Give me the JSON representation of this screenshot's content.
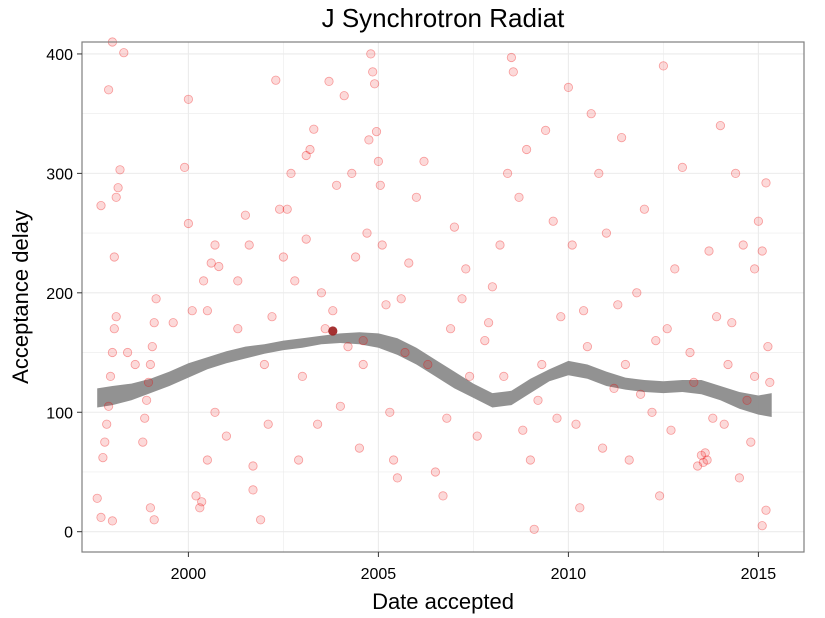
{
  "chart_data": {
    "type": "scatter",
    "title": "J Synchrotron Radiat",
    "xlabel": "Date accepted",
    "ylabel": "Acceptance delay",
    "xlim": [
      1997.2,
      2016.2
    ],
    "ylim": [
      -17,
      410
    ],
    "x_ticks": [
      2000,
      2005,
      2010,
      2015
    ],
    "x_tick_labels": [
      "2000",
      "2005",
      "2010",
      "2015"
    ],
    "y_ticks": [
      0,
      100,
      200,
      300,
      400
    ],
    "y_tick_labels": [
      "0",
      "100",
      "200",
      "300",
      "400"
    ],
    "grid": true,
    "legend": "none",
    "colors": {
      "points": "#ee0000",
      "smooth_band": "#8c8c8c",
      "panel_border": "#7f7f7f",
      "grid": "#ebebeb"
    },
    "series": [
      {
        "kind": "points",
        "points": [
          [
            1997.7,
            273
          ],
          [
            1997.9,
            370
          ],
          [
            1998.0,
            410
          ],
          [
            1998.3,
            401
          ],
          [
            1998.2,
            303
          ],
          [
            1998.15,
            288
          ],
          [
            1998.1,
            280
          ],
          [
            1998.05,
            230
          ],
          [
            1997.75,
            62
          ],
          [
            1997.8,
            75
          ],
          [
            1997.85,
            90
          ],
          [
            1997.9,
            105
          ],
          [
            1997.95,
            130
          ],
          [
            1998.0,
            150
          ],
          [
            1998.05,
            170
          ],
          [
            1998.1,
            180
          ],
          [
            1998.8,
            75
          ],
          [
            1998.85,
            95
          ],
          [
            1998.9,
            110
          ],
          [
            1998.95,
            125
          ],
          [
            1999.0,
            140
          ],
          [
            1999.05,
            155
          ],
          [
            1999.1,
            175
          ],
          [
            1999.15,
            195
          ],
          [
            1997.6,
            28
          ],
          [
            1997.7,
            12
          ],
          [
            1998.0,
            9
          ],
          [
            1998.4,
            150
          ],
          [
            1998.6,
            140
          ],
          [
            1999.0,
            20
          ],
          [
            1999.1,
            10
          ],
          [
            1999.6,
            175
          ],
          [
            1999.9,
            305
          ],
          [
            2000.0,
            362
          ],
          [
            2000.0,
            258
          ],
          [
            2000.1,
            185
          ],
          [
            2000.2,
            30
          ],
          [
            2000.3,
            20
          ],
          [
            2000.35,
            25
          ],
          [
            2000.4,
            210
          ],
          [
            2000.5,
            185
          ],
          [
            2000.6,
            225
          ],
          [
            2000.7,
            240
          ],
          [
            2000.8,
            222
          ],
          [
            2000.5,
            60
          ],
          [
            2000.7,
            100
          ],
          [
            2001.0,
            80
          ],
          [
            2001.3,
            170
          ],
          [
            2001.6,
            240
          ],
          [
            2001.7,
            55
          ],
          [
            2001.7,
            35
          ],
          [
            2001.9,
            10
          ],
          [
            2002.0,
            140
          ],
          [
            2002.1,
            90
          ],
          [
            2002.2,
            180
          ],
          [
            2002.3,
            378
          ],
          [
            2002.5,
            230
          ],
          [
            2002.6,
            270
          ],
          [
            2002.7,
            300
          ],
          [
            2002.8,
            210
          ],
          [
            2002.9,
            60
          ],
          [
            2003.0,
            130
          ],
          [
            2003.1,
            245
          ],
          [
            2003.2,
            320
          ],
          [
            2003.3,
            337
          ],
          [
            2003.4,
            90
          ],
          [
            2003.5,
            200
          ],
          [
            2003.6,
            170
          ],
          [
            2003.7,
            377
          ],
          [
            2003.8,
            185
          ],
          [
            2003.9,
            290
          ],
          [
            2004.0,
            105
          ],
          [
            2004.1,
            365
          ],
          [
            2004.2,
            155
          ],
          [
            2004.3,
            300
          ],
          [
            2004.4,
            230
          ],
          [
            2004.5,
            70
          ],
          [
            2004.6,
            140
          ],
          [
            2004.7,
            250
          ],
          [
            2004.75,
            328
          ],
          [
            2004.8,
            400
          ],
          [
            2004.85,
            385
          ],
          [
            2004.9,
            375
          ],
          [
            2004.95,
            335
          ],
          [
            2005.0,
            310
          ],
          [
            2005.05,
            290
          ],
          [
            2005.1,
            240
          ],
          [
            2005.2,
            190
          ],
          [
            2005.3,
            100
          ],
          [
            2005.4,
            60
          ],
          [
            2005.5,
            45
          ],
          [
            2005.6,
            195
          ],
          [
            2005.8,
            225
          ],
          [
            2006.0,
            280
          ],
          [
            2006.2,
            310
          ],
          [
            2006.5,
            50
          ],
          [
            2006.7,
            30
          ],
          [
            2006.9,
            170
          ],
          [
            2007.0,
            255
          ],
          [
            2007.2,
            195
          ],
          [
            2007.4,
            130
          ],
          [
            2007.6,
            80
          ],
          [
            2007.8,
            160
          ],
          [
            2008.0,
            205
          ],
          [
            2008.2,
            240
          ],
          [
            2008.4,
            300
          ],
          [
            2008.5,
            397
          ],
          [
            2008.55,
            385
          ],
          [
            2008.7,
            280
          ],
          [
            2008.9,
            320
          ],
          [
            2009.0,
            60
          ],
          [
            2009.1,
            2
          ],
          [
            2009.2,
            110
          ],
          [
            2009.4,
            336
          ],
          [
            2009.6,
            260
          ],
          [
            2009.8,
            180
          ],
          [
            2010.0,
            372
          ],
          [
            2010.1,
            240
          ],
          [
            2010.2,
            90
          ],
          [
            2010.3,
            20
          ],
          [
            2010.5,
            155
          ],
          [
            2010.6,
            350
          ],
          [
            2010.8,
            300
          ],
          [
            2011.0,
            250
          ],
          [
            2011.2,
            120
          ],
          [
            2011.4,
            330
          ],
          [
            2011.5,
            140
          ],
          [
            2011.6,
            60
          ],
          [
            2011.8,
            200
          ],
          [
            2012.0,
            270
          ],
          [
            2012.2,
            100
          ],
          [
            2012.4,
            30
          ],
          [
            2012.5,
            390
          ],
          [
            2012.6,
            170
          ],
          [
            2012.8,
            220
          ],
          [
            2013.0,
            305
          ],
          [
            2013.2,
            150
          ],
          [
            2013.4,
            55
          ],
          [
            2013.5,
            64
          ],
          [
            2013.55,
            58
          ],
          [
            2013.6,
            66
          ],
          [
            2013.65,
            60
          ],
          [
            2013.7,
            235
          ],
          [
            2013.9,
            180
          ],
          [
            2014.0,
            340
          ],
          [
            2014.1,
            90
          ],
          [
            2014.2,
            140
          ],
          [
            2014.4,
            300
          ],
          [
            2014.5,
            45
          ],
          [
            2014.6,
            240
          ],
          [
            2014.7,
            110
          ],
          [
            2014.8,
            75
          ],
          [
            2014.9,
            220
          ],
          [
            2015.0,
            260
          ],
          [
            2015.1,
            235
          ],
          [
            2015.2,
            292
          ],
          [
            2015.25,
            155
          ],
          [
            2015.3,
            125
          ],
          [
            2015.2,
            18
          ],
          [
            2015.1,
            5
          ],
          [
            2001.3,
            210
          ],
          [
            2001.5,
            265
          ],
          [
            2002.4,
            270
          ],
          [
            2003.1,
            315
          ],
          [
            2004.6,
            160
          ],
          [
            2005.7,
            150
          ],
          [
            2006.3,
            140
          ],
          [
            2006.8,
            95
          ],
          [
            2007.3,
            220
          ],
          [
            2007.9,
            175
          ],
          [
            2008.3,
            130
          ],
          [
            2008.8,
            85
          ],
          [
            2009.3,
            140
          ],
          [
            2009.7,
            95
          ],
          [
            2010.4,
            185
          ],
          [
            2010.9,
            70
          ],
          [
            2011.3,
            190
          ],
          [
            2011.9,
            115
          ],
          [
            2012.3,
            160
          ],
          [
            2012.7,
            85
          ],
          [
            2013.3,
            125
          ],
          [
            2013.8,
            95
          ],
          [
            2014.3,
            175
          ],
          [
            2014.9,
            130
          ]
        ]
      },
      {
        "kind": "highlighted points",
        "points": [
          [
            2003.8,
            168
          ]
        ]
      },
      {
        "kind": "smooth trend band",
        "x": [
          1997.6,
          1998.0,
          1998.5,
          1999.0,
          1999.5,
          2000.0,
          2000.5,
          2001.0,
          2001.5,
          2002.0,
          2002.5,
          2003.0,
          2003.5,
          2004.0,
          2004.5,
          2005.0,
          2005.5,
          2006.0,
          2006.5,
          2007.0,
          2007.5,
          2008.0,
          2008.5,
          2009.0,
          2009.5,
          2010.0,
          2010.5,
          2011.0,
          2011.5,
          2012.0,
          2012.5,
          2013.0,
          2013.5,
          2014.0,
          2014.5,
          2015.0,
          2015.35
        ],
        "y": [
          112,
          114,
          117,
          122,
          128,
          135,
          141,
          146,
          150,
          153,
          156,
          158,
          160,
          162,
          162,
          160,
          155,
          147,
          137,
          127,
          118,
          110,
          112,
          122,
          131,
          137,
          134,
          128,
          124,
          122,
          121,
          122,
          121,
          116,
          110,
          106,
          106
        ],
        "lower": [
          104,
          106,
          110,
          116,
          122,
          129,
          136,
          141,
          145,
          149,
          152,
          154,
          157,
          158,
          157,
          154,
          148,
          140,
          130,
          120,
          112,
          104,
          106,
          116,
          126,
          131,
          128,
          122,
          119,
          117,
          116,
          117,
          115,
          110,
          103,
          98,
          96
        ],
        "upper": [
          120,
          122,
          124,
          128,
          134,
          141,
          146,
          151,
          155,
          157,
          160,
          162,
          164,
          166,
          167,
          166,
          162,
          154,
          144,
          134,
          124,
          116,
          118,
          128,
          136,
          143,
          140,
          134,
          129,
          127,
          126,
          127,
          127,
          122,
          117,
          114,
          116
        ]
      }
    ]
  }
}
